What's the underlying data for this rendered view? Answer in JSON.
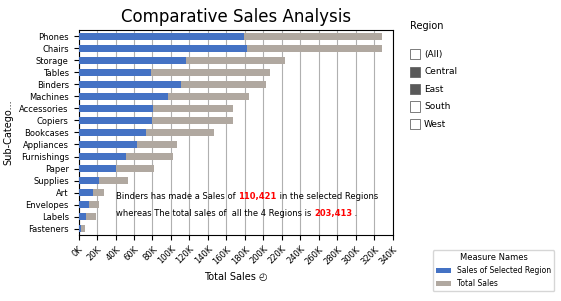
{
  "chart_data": {
    "type": "bar",
    "orientation": "horizontal",
    "title": "Comparative Sales Analysis",
    "xlabel": "Total Sales ◴",
    "ylabel": "Sub-Catego...",
    "categories": [
      "Fasteners",
      "Labels",
      "Envelopes",
      "Art",
      "Supplies",
      "Paper",
      "Furnishings",
      "Appliances",
      "Bookcases",
      "Copiers",
      "Accessories",
      "Machines",
      "Binders",
      "Tables",
      "Storage",
      "Chairs",
      "Phones"
    ],
    "series": [
      {
        "name": "Sales of Selected Region",
        "color": "#4472C4",
        "values": [
          3000,
          8000,
          11000,
          16000,
          22000,
          41000,
          51000,
          63000,
          73000,
          80000,
          81000,
          97000,
          110421,
          78000,
          116000,
          182000,
          179000
        ]
      },
      {
        "name": "Total Sales",
        "color": "#B0A8A0",
        "values": [
          7000,
          19000,
          22000,
          28000,
          53000,
          82000,
          102000,
          107000,
          147000,
          167000,
          167000,
          185000,
          203413,
          207000,
          223000,
          328000,
          328000
        ]
      }
    ],
    "stacked": false,
    "xlim": [
      0,
      340000
    ],
    "xticks": [
      {
        "value": 0,
        "label": "0K"
      },
      {
        "value": 20000,
        "label": "20K"
      },
      {
        "value": 40000,
        "label": "40K"
      },
      {
        "value": 60000,
        "label": "60K"
      },
      {
        "value": 80000,
        "label": "80K"
      },
      {
        "value": 100000,
        "label": "100K"
      },
      {
        "value": 120000,
        "label": "120K"
      },
      {
        "value": 140000,
        "label": "140K"
      },
      {
        "value": 160000,
        "label": "160K"
      },
      {
        "value": 180000,
        "label": "180K"
      },
      {
        "value": 200000,
        "label": "200K"
      },
      {
        "value": 220000,
        "label": "220K"
      },
      {
        "value": 240000,
        "label": "240K"
      },
      {
        "value": 260000,
        "label": "260K"
      },
      {
        "value": 280000,
        "label": "280K"
      },
      {
        "value": 300000,
        "label": "300K"
      },
      {
        "value": 320000,
        "label": "320K"
      },
      {
        "value": 340000,
        "label": "340K"
      }
    ],
    "grid": true,
    "legend": "lower right",
    "legend_title": "Measure Names",
    "annotations": [
      [
        "Binders has made a Sales of ",
        "110,421",
        " in the selected Regions"
      ],
      [
        "whereas The total sales of  all the 4 Regions is ",
        "203,413",
        " ."
      ]
    ],
    "filter": {
      "title": "Region",
      "items": [
        "(All)",
        "Central",
        "East",
        "South",
        "West"
      ],
      "checked": [
        false,
        true,
        true,
        false,
        false
      ]
    }
  }
}
